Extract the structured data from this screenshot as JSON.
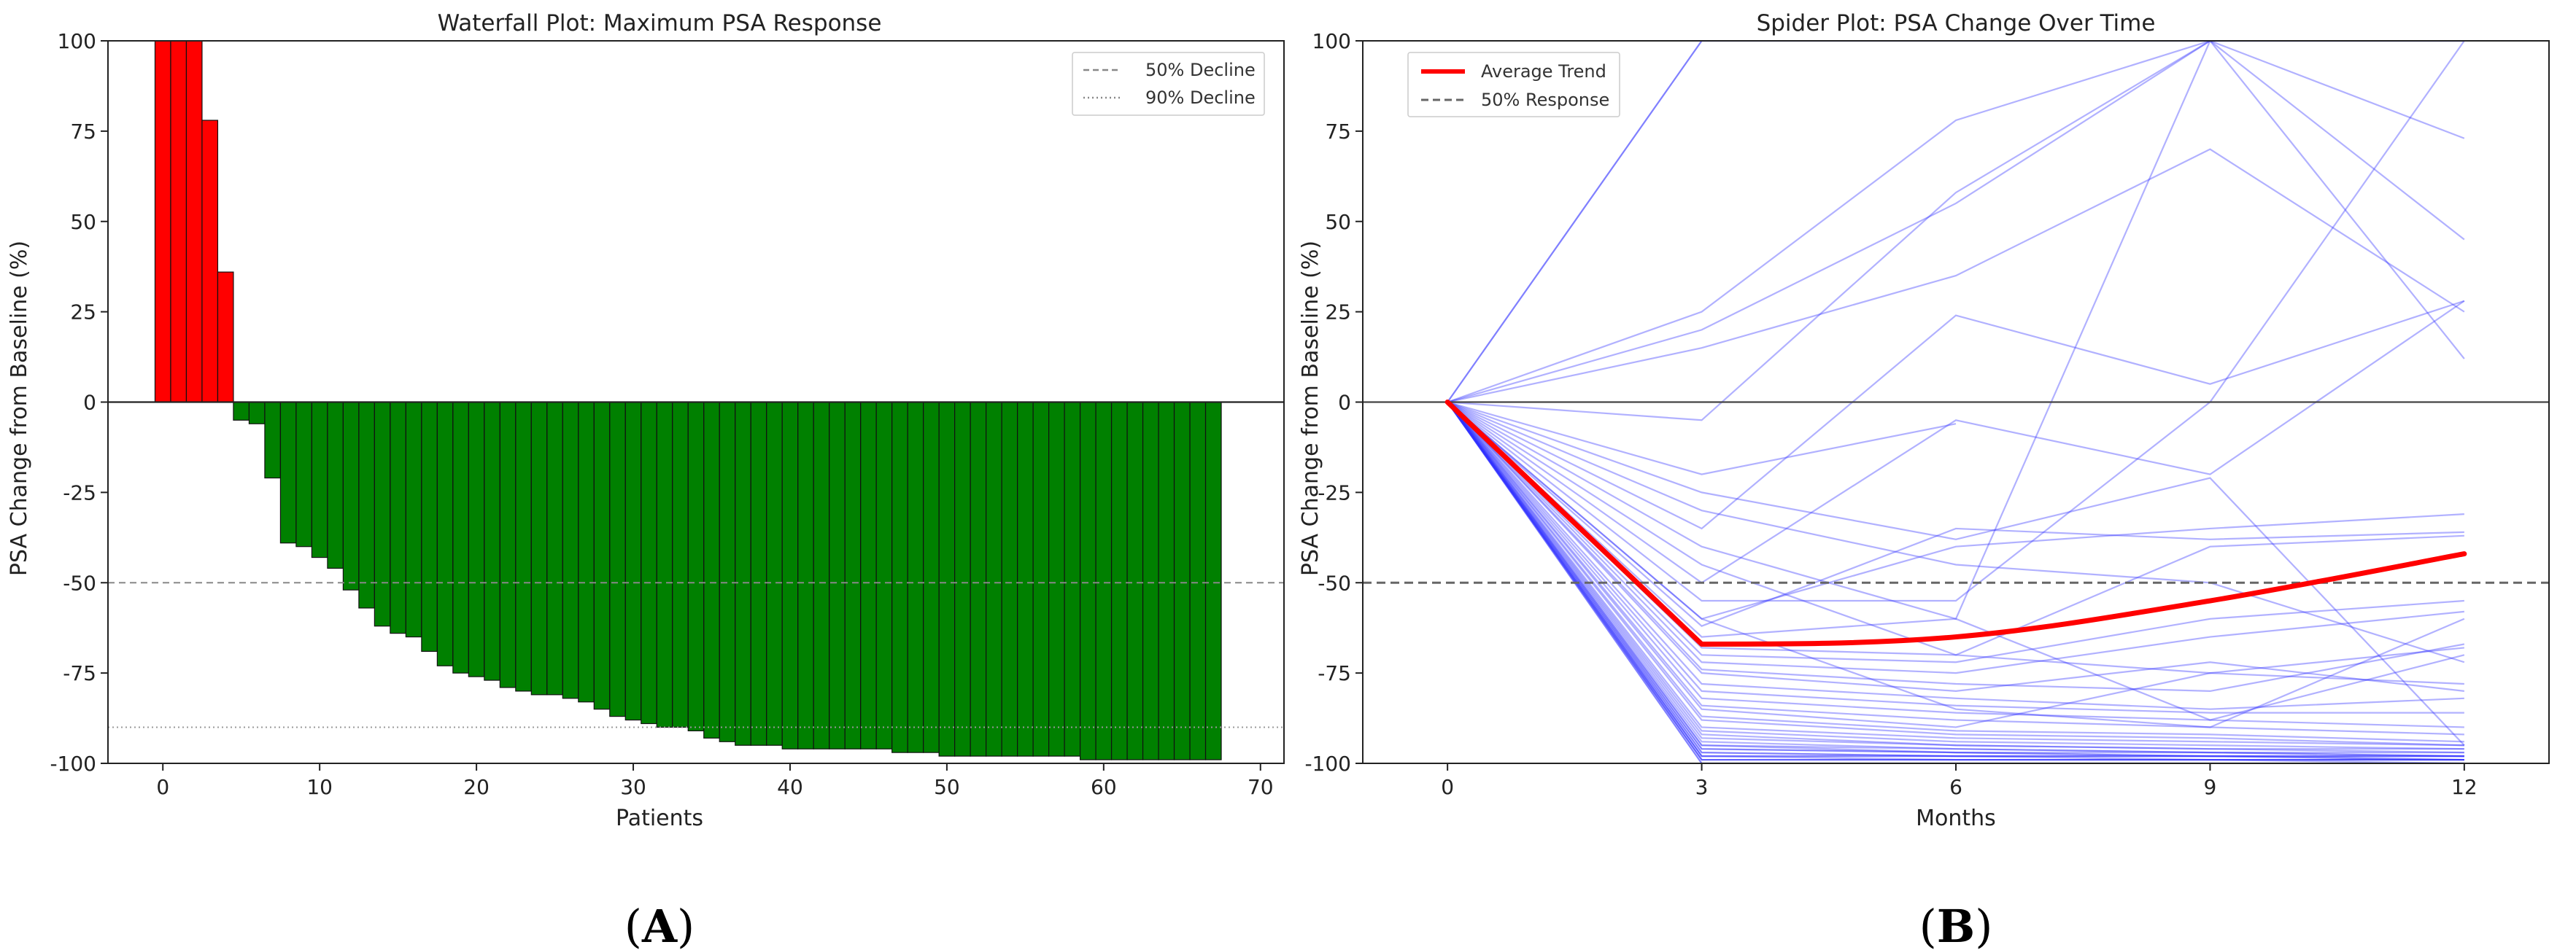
{
  "chart_data": [
    {
      "type": "bar",
      "title": "Waterfall Plot: Maximum PSA Response",
      "xlabel": "Patients",
      "ylabel": "PSA Change from Baseline (%)",
      "xlim": [
        -3.5,
        71.5
      ],
      "ylim": [
        -100,
        100
      ],
      "xticks": [
        0,
        10,
        20,
        30,
        40,
        50,
        60,
        70
      ],
      "yticks": [
        100,
        75,
        50,
        25,
        0,
        -25,
        -50,
        -75,
        -100
      ],
      "legend": [
        {
          "label": "50% Decline",
          "style": "dashed"
        },
        {
          "label": "90% Decline",
          "style": "dotted"
        }
      ],
      "reference_lines": [
        {
          "name": "50% Decline",
          "y": -50
        },
        {
          "name": "90% Decline",
          "y": -90
        }
      ],
      "positive_color": "#ff0000",
      "negative_color": "#008000",
      "values": [
        100,
        100,
        100,
        78,
        36,
        -5,
        -6,
        -21,
        -39,
        -40,
        -43,
        -46,
        -52,
        -57,
        -62,
        -64,
        -65,
        -69,
        -73,
        -75,
        -76,
        -77,
        -79,
        -80,
        -81,
        -81,
        -82,
        -83,
        -85,
        -87,
        -88,
        -89,
        -90,
        -90,
        -91,
        -93,
        -94,
        -95,
        -95,
        -95,
        -96,
        -96,
        -96,
        -96,
        -96,
        -96,
        -96,
        -97,
        -97,
        -97,
        -98,
        -98,
        -98,
        -98,
        -98,
        -98,
        -98,
        -98,
        -98,
        -99,
        -99,
        -99,
        -99,
        -99,
        -99,
        -99,
        -99,
        -99
      ]
    },
    {
      "type": "line",
      "title": "Spider Plot: PSA Change Over Time",
      "xlabel": "Months",
      "ylabel": "PSA Change from Baseline (%)",
      "x": [
        0,
        3,
        6,
        9,
        12
      ],
      "xlim": [
        -1,
        13
      ],
      "ylim": [
        -100,
        100
      ],
      "xticks": [
        0,
        3,
        6,
        9,
        12
      ],
      "yticks": [
        100,
        75,
        50,
        25,
        0,
        -25,
        -50,
        -75,
        -100
      ],
      "legend": [
        {
          "label": "Average Trend",
          "style": "solid-red"
        },
        {
          "label": "50% Response",
          "style": "dashed"
        }
      ],
      "reference_lines": [
        {
          "name": "50% Response",
          "y": -50
        }
      ],
      "average_color": "#ff0000",
      "patient_color": "#3333ff",
      "series": [
        {
          "name": "Average Trend",
          "values": [
            0,
            -67,
            -65,
            -55,
            -42
          ]
        },
        {
          "name": "patients",
          "lines": [
            [
              0,
              100,
              100,
              100,
              100
            ],
            [
              0,
              100,
              100,
              100,
              100
            ],
            [
              0,
              25,
              78,
              100,
              100
            ],
            [
              0,
              20,
              55,
              100,
              73
            ],
            [
              0,
              15,
              35,
              70,
              25
            ],
            [
              0,
              -5,
              58,
              100,
              45
            ],
            [
              0,
              -20,
              -6
            ],
            [
              0,
              -35,
              24,
              5,
              28
            ],
            [
              0,
              -40,
              -60,
              100,
              12
            ],
            [
              0,
              -50,
              -5,
              -20,
              28
            ],
            [
              0,
              -55,
              -55,
              0,
              100
            ],
            [
              0,
              -60,
              -40,
              -35,
              -31
            ],
            [
              0,
              -62,
              -35,
              -38,
              -36
            ],
            [
              0,
              -65,
              -60,
              -88,
              -70
            ],
            [
              0,
              -68,
              -70,
              -40,
              -37
            ],
            [
              0,
              -70,
              -72,
              -60,
              -55
            ],
            [
              0,
              -72,
              -75,
              -65,
              -58
            ],
            [
              0,
              -74,
              -78,
              -80,
              -67
            ],
            [
              0,
              -75,
              -80,
              -72,
              -80
            ],
            [
              0,
              -78,
              -82,
              -85,
              -82
            ],
            [
              0,
              -80,
              -84,
              -86,
              -86
            ],
            [
              0,
              -82,
              -86,
              -88,
              -90
            ],
            [
              0,
              -84,
              -88,
              -90,
              -92
            ],
            [
              0,
              -85,
              -90,
              -75,
              -78
            ],
            [
              0,
              -87,
              -91,
              -92,
              -94
            ],
            [
              0,
              -88,
              -92,
              -93,
              -95
            ],
            [
              0,
              -90,
              -93,
              -94,
              -95
            ],
            [
              0,
              -91,
              -94,
              -95,
              -96
            ],
            [
              0,
              -92,
              -95,
              -96,
              -96
            ],
            [
              0,
              -93,
              -95,
              -96,
              -97
            ],
            [
              0,
              -94,
              -96,
              -97,
              -97
            ],
            [
              0,
              -95,
              -96,
              -97,
              -98
            ],
            [
              0,
              -95,
              -97,
              -97,
              -98
            ],
            [
              0,
              -96,
              -97,
              -98,
              -98
            ],
            [
              0,
              -96,
              -97,
              -98,
              -98
            ],
            [
              0,
              -97,
              -98,
              -98,
              -98
            ],
            [
              0,
              -97,
              -98,
              -98,
              -99
            ],
            [
              0,
              -98,
              -98,
              -98,
              -99
            ],
            [
              0,
              -98,
              -98,
              -99,
              -99
            ],
            [
              0,
              -98,
              -99,
              -99,
              -99
            ],
            [
              0,
              -99,
              -99,
              -99,
              -99
            ],
            [
              0,
              -99,
              -99,
              -99,
              -99
            ],
            [
              0,
              -99,
              -99,
              -99,
              -100
            ],
            [
              0,
              -100,
              -100,
              -100,
              -100
            ],
            [
              0,
              -100,
              -100,
              -100,
              -100
            ],
            [
              0,
              -30,
              -45,
              -50,
              -72
            ],
            [
              0,
              -45,
              -70,
              -75,
              -68
            ],
            [
              0,
              -25,
              -38,
              -21,
              -95
            ],
            [
              0,
              -60,
              -85,
              -90,
              -60
            ]
          ]
        }
      ]
    }
  ],
  "captions": {
    "a": "A",
    "b": "B"
  }
}
